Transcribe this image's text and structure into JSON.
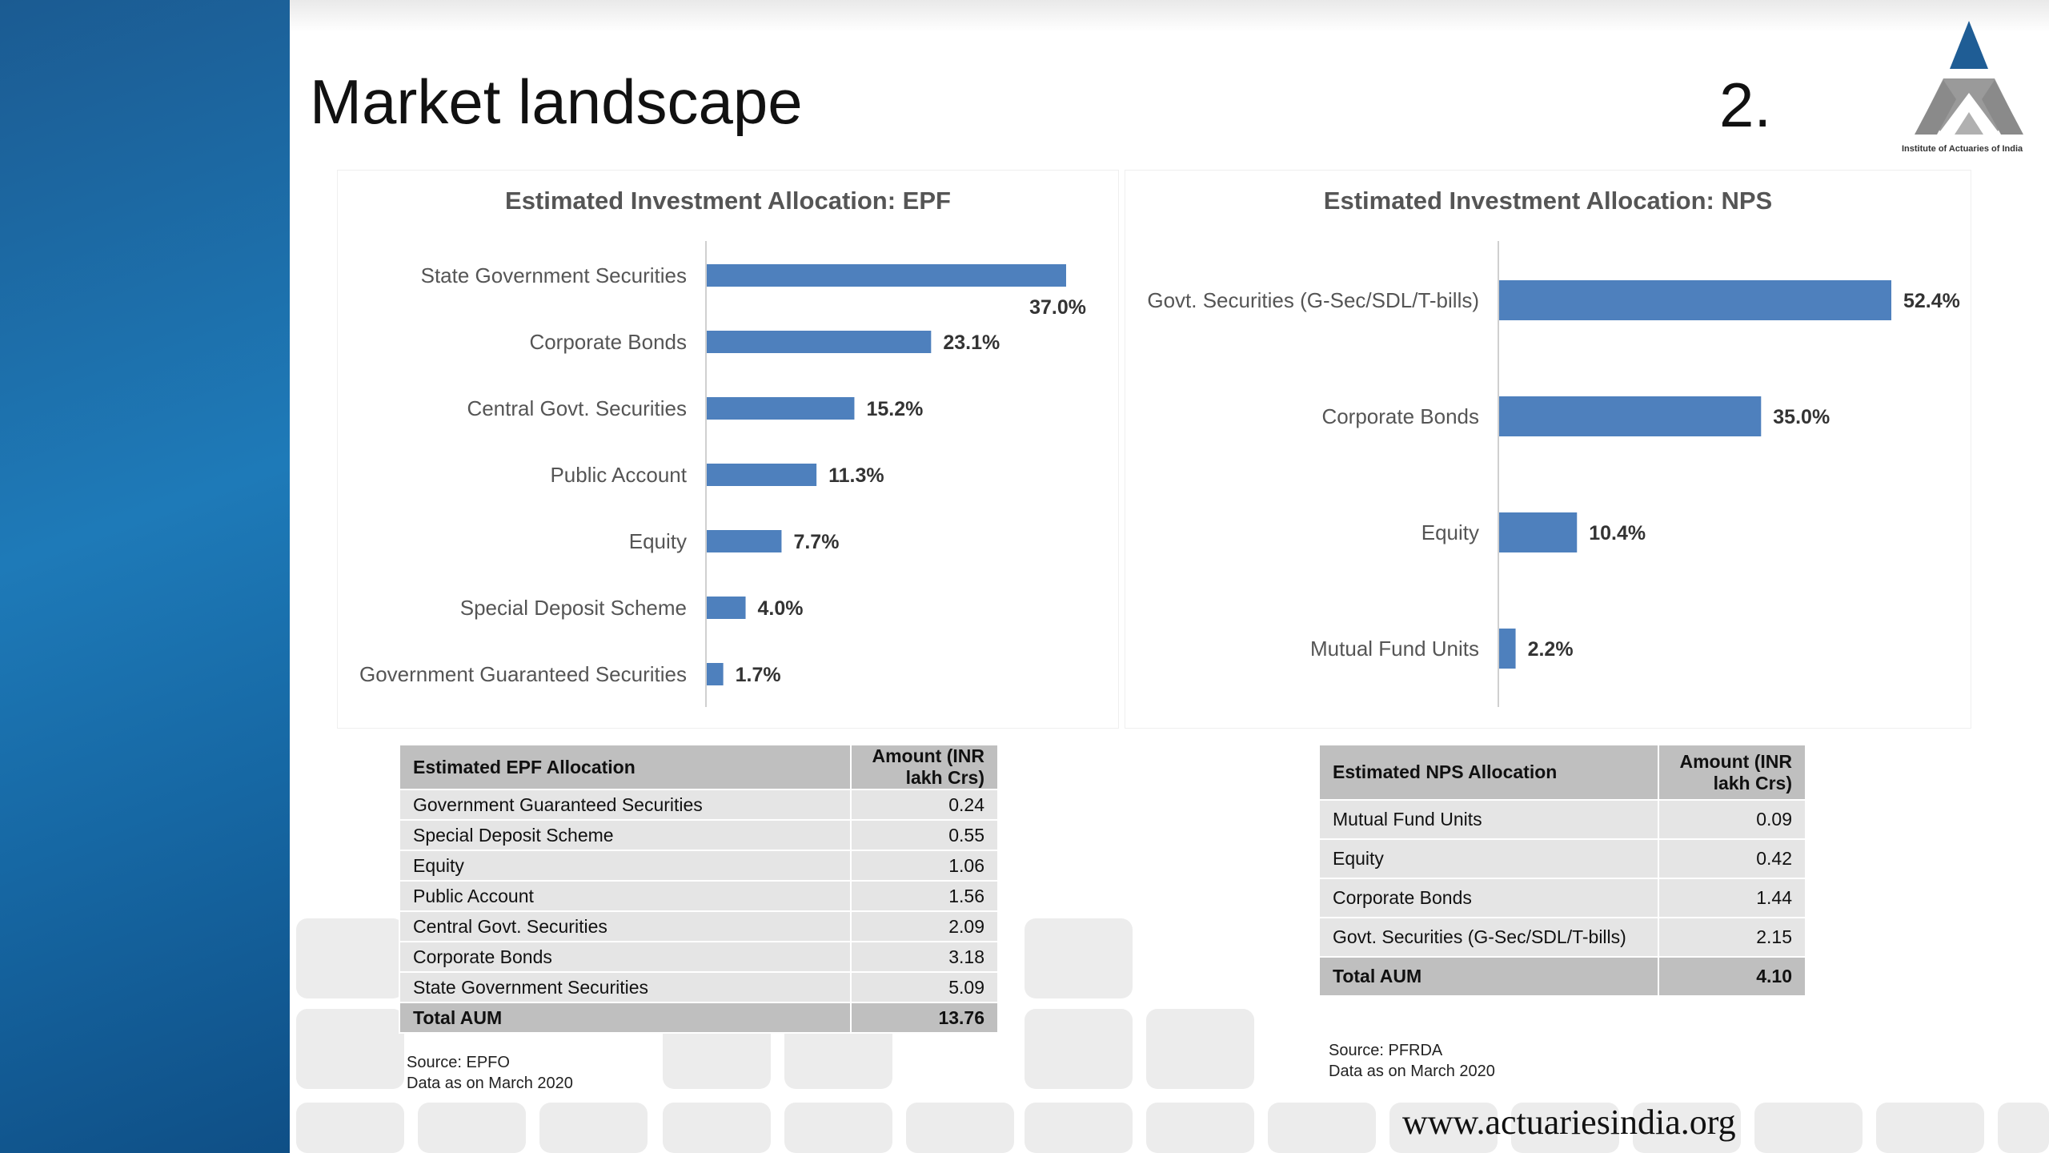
{
  "slide": {
    "title": "Market landscape",
    "number": "2.",
    "logo_caption": "Institute of Actuaries of India",
    "website": "www.actuariesindia.org"
  },
  "chart_data": [
    {
      "type": "bar",
      "orientation": "horizontal",
      "title": "Estimated Investment Allocation: EPF",
      "categories": [
        "State Government Securities",
        "Corporate Bonds",
        "Central Govt. Securities",
        "Public Account",
        "Equity",
        "Special Deposit Scheme",
        "Government Guaranteed Securities"
      ],
      "values": [
        37.0,
        23.1,
        15.2,
        11.3,
        7.7,
        4.0,
        1.7
      ],
      "labels": [
        "37.0%",
        "23.1%",
        "15.2%",
        "11.3%",
        "7.7%",
        "4.0%",
        "1.7%"
      ],
      "color": "#4e80bd",
      "xlim": [
        0,
        37.0
      ],
      "grid": false,
      "legend": "none"
    },
    {
      "type": "bar",
      "orientation": "horizontal",
      "title": "Estimated Investment Allocation: NPS",
      "categories": [
        "Govt. Securities (G-Sec/SDL/T-bills)",
        "Corporate Bonds",
        "Equity",
        "Mutual Fund Units"
      ],
      "values": [
        52.4,
        35.0,
        10.4,
        2.2
      ],
      "labels": [
        "52.4%",
        "35.0%",
        "10.4%",
        "2.2%"
      ],
      "color": "#4e80bd",
      "xlim": [
        0,
        52.4
      ],
      "grid": false,
      "legend": "none"
    }
  ],
  "epf_table": {
    "header_name": "Estimated EPF Allocation",
    "header_amount": "Amount (INR lakh Crs)",
    "rows": [
      {
        "name": "Government Guaranteed Securities",
        "amount": "0.24"
      },
      {
        "name": "Special Deposit Scheme",
        "amount": "0.55"
      },
      {
        "name": "Equity",
        "amount": "1.06"
      },
      {
        "name": "Public Account",
        "amount": "1.56"
      },
      {
        "name": "Central Govt. Securities",
        "amount": "2.09"
      },
      {
        "name": "Corporate Bonds",
        "amount": "3.18"
      },
      {
        "name": "State Government Securities",
        "amount": "5.09"
      }
    ],
    "total_label": "Total AUM",
    "total_amount": "13.76",
    "source": "Source: EPFO",
    "data_date": "Data as on March 2020"
  },
  "nps_table": {
    "header_name": "Estimated NPS Allocation",
    "header_amount": "Amount (INR lakh Crs)",
    "rows": [
      {
        "name": "Mutual Fund Units",
        "amount": "0.09"
      },
      {
        "name": "Equity",
        "amount": "0.42"
      },
      {
        "name": "Corporate Bonds",
        "amount": "1.44"
      },
      {
        "name": "Govt. Securities (G-Sec/SDL/T-bills)",
        "amount": "2.15"
      }
    ],
    "total_label": "Total AUM",
    "total_amount": "4.10",
    "source": "Source: PFRDA",
    "data_date": "Data as on March 2020"
  }
}
